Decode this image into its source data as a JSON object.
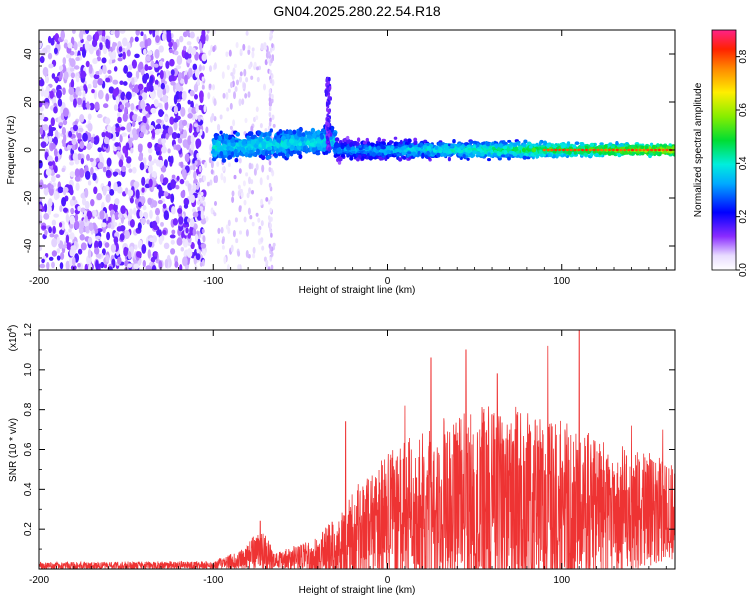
{
  "chart_data": [
    {
      "type": "heatmap",
      "title": "GN04.2025.280.22.54.R18",
      "xlabel": "Height of straight line (km)",
      "ylabel": "Frequency (Hz)",
      "xlim": [
        -200,
        165
      ],
      "ylim": [
        -50,
        50
      ],
      "xticks": [
        -200,
        -100,
        0,
        100
      ],
      "yticks": [
        -40,
        -20,
        0,
        20,
        40
      ],
      "colorbar": {
        "label": "Normalized spectral amplitude",
        "range": [
          0.0,
          0.9
        ],
        "ticks": [
          "0.0",
          "0.2",
          "0.4",
          "0.6",
          "0.8"
        ]
      },
      "description_segments": [
        {
          "x_from": -200,
          "x_to": -100,
          "pattern": "sparse_noise",
          "amplitude": 0.1
        },
        {
          "x_from": -100,
          "x_to": -30,
          "pattern": "band_widening",
          "center_hz": 5,
          "halfwidth_hz": 7,
          "amplitude": 0.35
        },
        {
          "x_from": -36,
          "x_to": -30,
          "pattern": "spike",
          "peak_hz": 30
        },
        {
          "x_from": -30,
          "x_to": 165,
          "pattern": "narrowing_band",
          "center_hz": 0,
          "halfwidth_hz": 4,
          "amplitude_end": 0.85
        }
      ]
    },
    {
      "type": "line",
      "xlabel": "Height of straight line (km)",
      "ylabel": "SNR (10 * v/v)",
      "yscale_label": "(x10",
      "yscale_exp": "4",
      "yscale_close": ")",
      "xlim": [
        -200,
        165
      ],
      "ylim": [
        0,
        1.2
      ],
      "xticks": [
        -200,
        -100,
        0,
        100
      ],
      "yticks": [
        "0.2",
        "0.4",
        "0.6",
        "0.8",
        "1.0",
        "1.2"
      ],
      "series": [
        {
          "name": "SNR",
          "color": "#ee3333",
          "envelope": [
            {
              "x": -200,
              "base": 0.015,
              "spread": 0.02
            },
            {
              "x": -100,
              "base": 0.02,
              "spread": 0.02
            },
            {
              "x": -85,
              "base": 0.04,
              "spread": 0.05
            },
            {
              "x": -72,
              "base": 0.1,
              "spread": 0.12
            },
            {
              "x": -65,
              "base": 0.04,
              "spread": 0.04
            },
            {
              "x": -40,
              "base": 0.06,
              "spread": 0.1
            },
            {
              "x": -20,
              "base": 0.15,
              "spread": 0.25
            },
            {
              "x": 0,
              "base": 0.25,
              "spread": 0.35
            },
            {
              "x": 30,
              "base": 0.3,
              "spread": 0.45
            },
            {
              "x": 60,
              "base": 0.35,
              "spread": 0.5
            },
            {
              "x": 100,
              "base": 0.3,
              "spread": 0.45
            },
            {
              "x": 130,
              "base": 0.28,
              "spread": 0.35
            },
            {
              "x": 165,
              "base": 0.3,
              "spread": 0.25
            }
          ],
          "peaks": [
            {
              "x": -73,
              "y": 0.24
            },
            {
              "x": -24,
              "y": 0.74
            },
            {
              "x": 10,
              "y": 0.82
            },
            {
              "x": 25,
              "y": 1.06
            },
            {
              "x": 45,
              "y": 1.1
            },
            {
              "x": 63,
              "y": 0.98
            },
            {
              "x": 92,
              "y": 1.12
            },
            {
              "x": 110,
              "y": 1.21
            },
            {
              "x": 140,
              "y": 0.72
            },
            {
              "x": 158,
              "y": 0.7
            }
          ]
        }
      ]
    }
  ]
}
